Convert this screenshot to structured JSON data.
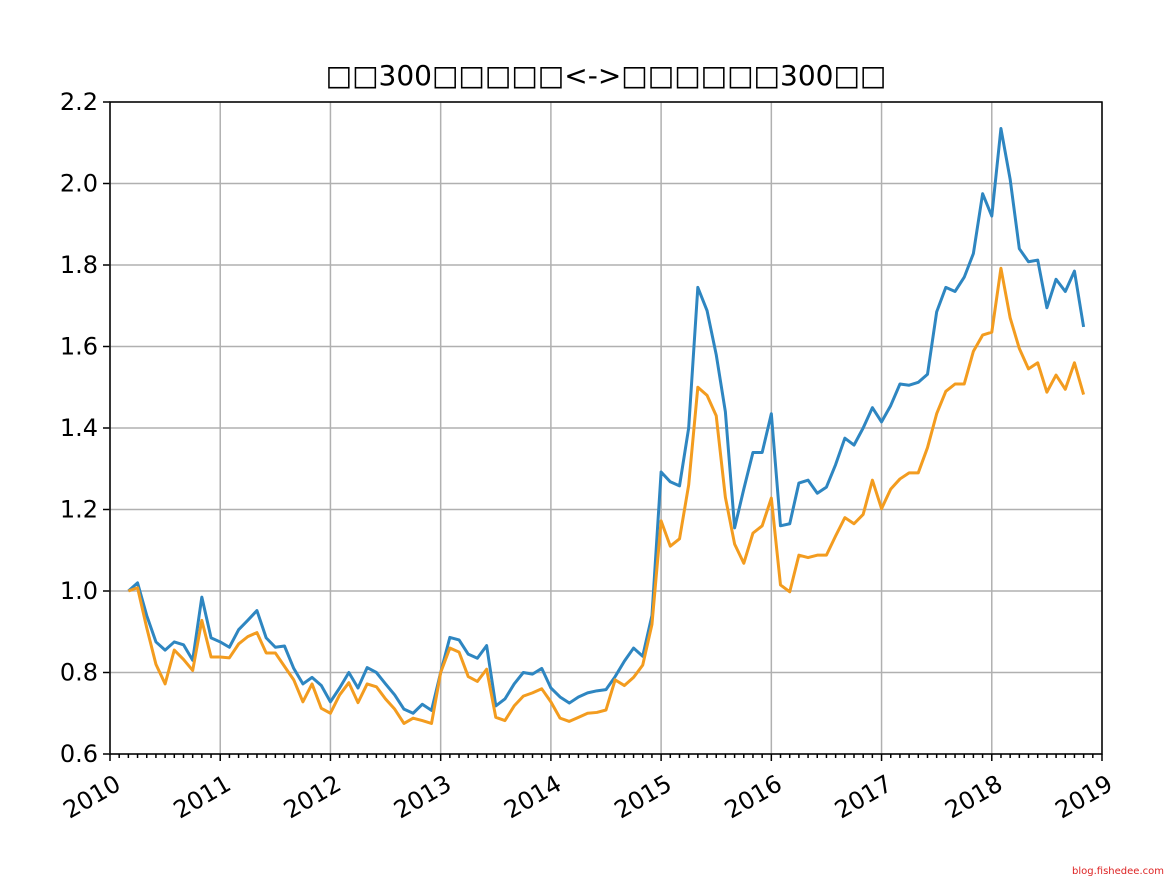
{
  "chart_data": {
    "type": "line",
    "title": "□□300□□□□□<->□□□□□□300□□",
    "watermark": "blog.fishedee.com",
    "x": [
      2010.167,
      2010.25,
      2010.333,
      2010.417,
      2010.5,
      2010.583,
      2010.667,
      2010.75,
      2010.833,
      2010.917,
      2011.0,
      2011.083,
      2011.167,
      2011.25,
      2011.333,
      2011.417,
      2011.5,
      2011.583,
      2011.667,
      2011.75,
      2011.833,
      2011.917,
      2012.0,
      2012.083,
      2012.167,
      2012.25,
      2012.333,
      2012.417,
      2012.5,
      2012.583,
      2012.667,
      2012.75,
      2012.833,
      2012.917,
      2013.0,
      2013.083,
      2013.167,
      2013.25,
      2013.333,
      2013.417,
      2013.5,
      2013.583,
      2013.667,
      2013.75,
      2013.833,
      2013.917,
      2014.0,
      2014.083,
      2014.167,
      2014.25,
      2014.333,
      2014.417,
      2014.5,
      2014.583,
      2014.667,
      2014.75,
      2014.833,
      2014.917,
      2015.0,
      2015.083,
      2015.167,
      2015.25,
      2015.333,
      2015.417,
      2015.5,
      2015.583,
      2015.667,
      2015.75,
      2015.833,
      2015.917,
      2016.0,
      2016.083,
      2016.167,
      2016.25,
      2016.333,
      2016.417,
      2016.5,
      2016.583,
      2016.667,
      2016.75,
      2016.833,
      2016.917,
      2017.0,
      2017.083,
      2017.167,
      2017.25,
      2017.333,
      2017.417,
      2017.5,
      2017.583,
      2017.667,
      2017.75,
      2017.833,
      2017.917,
      2018.0,
      2018.083,
      2018.167,
      2018.25,
      2018.333,
      2018.417,
      2018.5,
      2018.583,
      2018.667,
      2018.75,
      2018.833
    ],
    "series": [
      {
        "color": "#2e86c1",
        "values": [
          1.0,
          1.02,
          0.94,
          0.875,
          0.855,
          0.875,
          0.868,
          0.83,
          0.985,
          0.885,
          0.875,
          0.862,
          0.905,
          0.928,
          0.952,
          0.885,
          0.862,
          0.865,
          0.81,
          0.772,
          0.788,
          0.768,
          0.728,
          0.762,
          0.8,
          0.762,
          0.812,
          0.8,
          0.772,
          0.745,
          0.71,
          0.7,
          0.722,
          0.707,
          0.8,
          0.886,
          0.88,
          0.845,
          0.835,
          0.866,
          0.718,
          0.735,
          0.772,
          0.8,
          0.796,
          0.81,
          0.762,
          0.74,
          0.725,
          0.74,
          0.75,
          0.755,
          0.758,
          0.79,
          0.828,
          0.86,
          0.84,
          0.94,
          1.292,
          1.268,
          1.258,
          1.4,
          1.745,
          1.688,
          1.58,
          1.44,
          1.155,
          1.25,
          1.34,
          1.34,
          1.435,
          1.16,
          1.165,
          1.265,
          1.272,
          1.24,
          1.255,
          1.31,
          1.375,
          1.358,
          1.4,
          1.45,
          1.415,
          1.455,
          1.508,
          1.505,
          1.512,
          1.532,
          1.685,
          1.745,
          1.735,
          1.77,
          1.828,
          1.975,
          1.92,
          2.135,
          2.01,
          1.84,
          1.808,
          1.812,
          1.695,
          1.765,
          1.735,
          1.785,
          1.648
        ]
      },
      {
        "color": "#f39c1f",
        "values": [
          1.0,
          1.008,
          0.91,
          0.82,
          0.772,
          0.855,
          0.832,
          0.805,
          0.928,
          0.838,
          0.838,
          0.836,
          0.87,
          0.888,
          0.898,
          0.848,
          0.848,
          0.815,
          0.782,
          0.728,
          0.772,
          0.712,
          0.7,
          0.745,
          0.775,
          0.726,
          0.772,
          0.765,
          0.735,
          0.71,
          0.675,
          0.688,
          0.682,
          0.675,
          0.8,
          0.86,
          0.85,
          0.79,
          0.778,
          0.808,
          0.69,
          0.682,
          0.718,
          0.742,
          0.75,
          0.76,
          0.728,
          0.688,
          0.68,
          0.69,
          0.7,
          0.702,
          0.708,
          0.782,
          0.768,
          0.788,
          0.818,
          0.918,
          1.172,
          1.11,
          1.128,
          1.26,
          1.5,
          1.48,
          1.43,
          1.23,
          1.115,
          1.068,
          1.142,
          1.16,
          1.228,
          1.015,
          0.998,
          1.088,
          1.082,
          1.088,
          1.088,
          1.135,
          1.18,
          1.165,
          1.188,
          1.272,
          1.202,
          1.25,
          1.275,
          1.29,
          1.29,
          1.352,
          1.435,
          1.49,
          1.508,
          1.508,
          1.588,
          1.628,
          1.635,
          1.792,
          1.67,
          1.595,
          1.545,
          1.56,
          1.488,
          1.53,
          1.495,
          1.56,
          1.482
        ]
      }
    ],
    "xlim": [
      2010,
      2019
    ],
    "xticks": [
      2010,
      2011,
      2012,
      2013,
      2014,
      2015,
      2016,
      2017,
      2018,
      2019
    ],
    "ylim": [
      0.6,
      2.2
    ],
    "yticks": [
      {
        "value": 0.6,
        "label": "0.6"
      },
      {
        "value": 0.8,
        "label": "0.8"
      },
      {
        "value": 1.0,
        "label": "1.0"
      },
      {
        "value": 1.2,
        "label": "1.2"
      },
      {
        "value": 1.4,
        "label": "1.4"
      },
      {
        "value": 1.6,
        "label": "1.6"
      },
      {
        "value": 1.8,
        "label": "1.8"
      },
      {
        "value": 2.0,
        "label": "2.0"
      },
      {
        "value": 2.2,
        "label": "2.2"
      }
    ],
    "grid": true
  }
}
